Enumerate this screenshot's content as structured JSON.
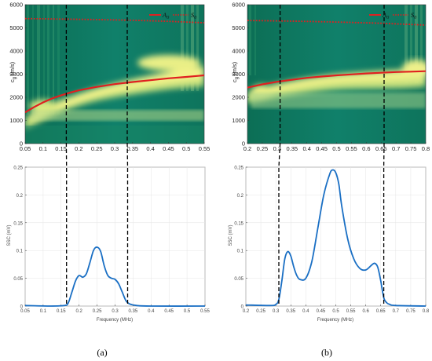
{
  "captions": {
    "a": "(a)",
    "b": "(b)"
  },
  "colors": {
    "map_background": "#0f7a5f",
    "map_ridge": "#f6f58a",
    "A0_curve": "#e02020",
    "S0_curve": "#e02020",
    "ssc_line": "#1a6fc4",
    "cutoff_lines": "#000000"
  },
  "chart_data": [
    {
      "id": "a-top",
      "type": "heatmap",
      "ylabel_main": "c",
      "ylabel_sub": "g",
      "ylabel_unit": "(m/s)",
      "xlim": [
        0.05,
        0.55
      ],
      "ylim": [
        0,
        6000
      ],
      "xticks": [
        "0.05",
        "0.1",
        "0.15",
        "0.2",
        "0.25",
        "0.3",
        "0.35",
        "0.4",
        "0.45",
        "0.5",
        "0.55"
      ],
      "yticks": [
        "0",
        "1000",
        "2000",
        "3000",
        "4000",
        "5000",
        "6000"
      ],
      "legend": [
        {
          "main": "A",
          "sub": "0",
          "style": "solid"
        },
        {
          "main": "S",
          "sub": "0",
          "style": "dotted"
        }
      ],
      "legend_position": "top-right",
      "series": [
        {
          "name": "A0",
          "x": [
            0.05,
            0.075,
            0.1,
            0.125,
            0.15,
            0.175,
            0.2,
            0.25,
            0.3,
            0.35,
            0.4,
            0.45,
            0.5,
            0.55
          ],
          "y": [
            1350,
            1580,
            1780,
            1950,
            2080,
            2200,
            2300,
            2450,
            2570,
            2660,
            2740,
            2820,
            2880,
            2950
          ]
        },
        {
          "name": "S0",
          "x": [
            0.05,
            0.15,
            0.25,
            0.35,
            0.45,
            0.55
          ],
          "y": [
            5400,
            5380,
            5360,
            5330,
            5280,
            5220
          ]
        }
      ],
      "cutoffs": [
        0.165,
        0.335
      ]
    },
    {
      "id": "a-bottom",
      "type": "line",
      "xlabel": "Frequency (MHz)",
      "ylabel": "SSC     (mV)",
      "xlim": [
        0.05,
        0.55
      ],
      "ylim": [
        0,
        0.25
      ],
      "grid": true,
      "xticks": [
        "0.05",
        "0.1",
        "0.15",
        "0.2",
        "0.25",
        "0.3",
        "0.35",
        "0.4",
        "0.45",
        "0.5",
        "0.55"
      ],
      "yticks": [
        "0",
        "0.05",
        "0.1",
        "0.15",
        "0.2",
        "0.25"
      ],
      "series": [
        {
          "x": [
            0.05,
            0.12,
            0.16,
            0.17,
            0.18,
            0.19,
            0.2,
            0.21,
            0.22,
            0.23,
            0.24,
            0.25,
            0.26,
            0.27,
            0.28,
            0.29,
            0.3,
            0.31,
            0.32,
            0.33,
            0.34,
            0.36,
            0.4,
            0.55
          ],
          "y": [
            0.001,
            0.0,
            0.001,
            0.006,
            0.025,
            0.045,
            0.055,
            0.052,
            0.058,
            0.078,
            0.1,
            0.106,
            0.098,
            0.072,
            0.055,
            0.05,
            0.048,
            0.04,
            0.025,
            0.01,
            0.004,
            0.001,
            0.0,
            0.0
          ]
        }
      ]
    },
    {
      "id": "b-top",
      "type": "heatmap",
      "ylabel_main": "c",
      "ylabel_sub": "g",
      "ylabel_unit": "(m/s)",
      "xlim": [
        0.2,
        0.8
      ],
      "ylim": [
        0,
        6000
      ],
      "xticks": [
        "0.2",
        "0.25",
        "0.3",
        "0.35",
        "0.4",
        "0.45",
        "0.5",
        "0.55",
        "0.6",
        "0.65",
        "0.7",
        "0.75",
        "0.8"
      ],
      "yticks": [
        "0",
        "1000",
        "2000",
        "3000",
        "4000",
        "5000",
        "6000"
      ],
      "legend": [
        {
          "main": "A",
          "sub": "0",
          "style": "solid"
        },
        {
          "main": "S",
          "sub": "0",
          "style": "dotted"
        }
      ],
      "legend_position": "top-right",
      "series": [
        {
          "name": "A0",
          "x": [
            0.2,
            0.25,
            0.3,
            0.35,
            0.4,
            0.45,
            0.5,
            0.55,
            0.6,
            0.65,
            0.7,
            0.75,
            0.8
          ],
          "y": [
            2420,
            2560,
            2670,
            2760,
            2840,
            2900,
            2950,
            2990,
            3030,
            3060,
            3090,
            3110,
            3130
          ]
        },
        {
          "name": "S0",
          "x": [
            0.2,
            0.35,
            0.5,
            0.65,
            0.8
          ],
          "y": [
            5320,
            5290,
            5250,
            5200,
            5120
          ]
        }
      ],
      "cutoffs": [
        0.31,
        0.66
      ]
    },
    {
      "id": "b-bottom",
      "type": "line",
      "xlabel": "Frequency (MHz)",
      "ylabel": "SSC     (mV)",
      "xlim": [
        0.2,
        0.8
      ],
      "ylim": [
        0,
        0.25
      ],
      "grid": true,
      "xticks": [
        "0.2",
        "0.25",
        "0.3",
        "0.35",
        "0.4",
        "0.45",
        "0.5",
        "0.55",
        "0.6",
        "0.65",
        "0.7",
        "0.75",
        "0.8"
      ],
      "yticks": [
        "0",
        "0.05",
        "0.1",
        "0.15",
        "0.2",
        "0.25"
      ],
      "series": [
        {
          "x": [
            0.2,
            0.28,
            0.3,
            0.31,
            0.32,
            0.33,
            0.34,
            0.35,
            0.36,
            0.37,
            0.38,
            0.4,
            0.42,
            0.44,
            0.46,
            0.48,
            0.49,
            0.5,
            0.51,
            0.52,
            0.54,
            0.56,
            0.58,
            0.6,
            0.62,
            0.63,
            0.64,
            0.65,
            0.66,
            0.67,
            0.68,
            0.7,
            0.8
          ],
          "y": [
            0.002,
            0.001,
            0.003,
            0.012,
            0.045,
            0.085,
            0.098,
            0.09,
            0.07,
            0.055,
            0.048,
            0.05,
            0.08,
            0.14,
            0.2,
            0.238,
            0.245,
            0.24,
            0.22,
            0.18,
            0.12,
            0.085,
            0.068,
            0.065,
            0.074,
            0.077,
            0.07,
            0.045,
            0.015,
            0.006,
            0.003,
            0.001,
            0.0
          ]
        }
      ]
    }
  ]
}
